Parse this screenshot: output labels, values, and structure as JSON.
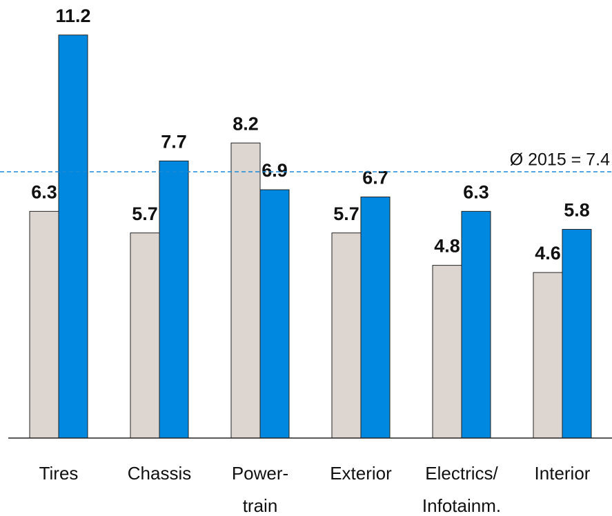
{
  "chart_data": {
    "type": "bar",
    "categories": [
      "Tires",
      "Chassis",
      "Power-\ntrain",
      "Exterior",
      "Electrics/\nInfotainm.",
      "Interior"
    ],
    "series": [
      {
        "color": "#ddd5d0",
        "values": [
          6.3,
          5.7,
          8.2,
          5.7,
          4.8,
          4.6
        ]
      },
      {
        "color": "#0088e0",
        "values": [
          11.2,
          7.7,
          6.9,
          6.7,
          6.3,
          5.8
        ]
      }
    ],
    "ylim": [
      0,
      12
    ],
    "reference_line": {
      "value": 7.4,
      "label": "Ø 2015 = 7.4",
      "color": "#1a8ad8"
    },
    "grid": false
  }
}
